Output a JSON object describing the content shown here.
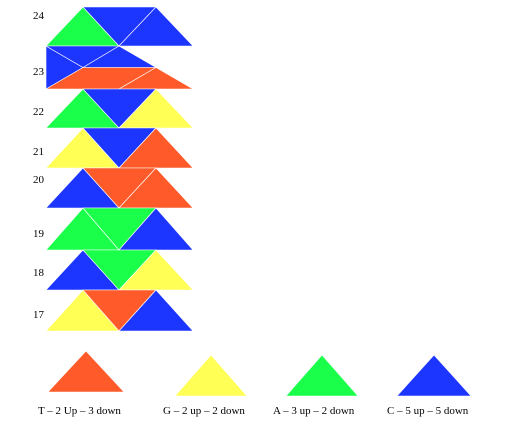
{
  "colors": {
    "red": "#FF5A2A",
    "yellow": "#FFFF55",
    "green": "#19FF4A",
    "blue": "#1C35FF"
  },
  "row_labels": [
    "24",
    "23",
    "22",
    "21",
    "20",
    "19",
    "18",
    "17"
  ],
  "legend": [
    {
      "color": "red",
      "label": "T – 2 Up – 3 down"
    },
    {
      "color": "yellow",
      "label": "G – 2 up – 2 down"
    },
    {
      "color": "green",
      "label": "A  – 3 up – 2 down"
    },
    {
      "color": "blue",
      "label": "C – 5 up – 5 down"
    }
  ]
}
